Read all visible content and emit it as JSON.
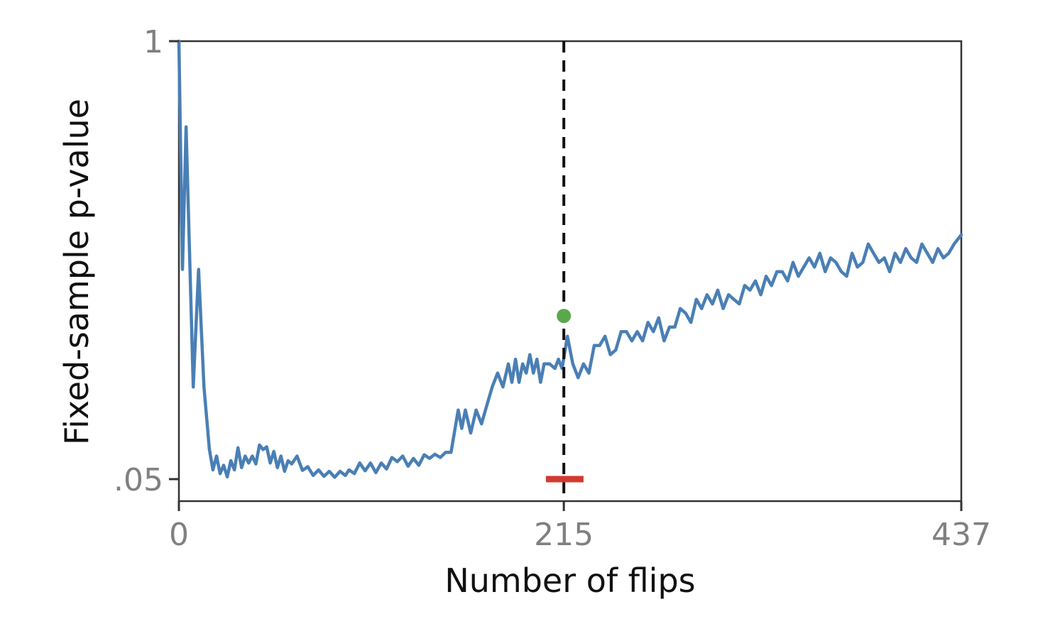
{
  "chart_data": {
    "type": "line",
    "title": "",
    "xlabel": "Number of flips",
    "ylabel": "Fixed-sample p-value",
    "xlim": [
      0,
      437
    ],
    "ylim": [
      0.05,
      1
    ],
    "x_ticks": [
      {
        "value": 0,
        "label": "0"
      },
      {
        "value": 215,
        "label": "215"
      },
      {
        "value": 437,
        "label": "437"
      }
    ],
    "y_ticks": [
      {
        "value": 1,
        "label": "1"
      },
      {
        "value": 0.05,
        "label": ".05"
      }
    ],
    "grid": false,
    "series": [
      {
        "color": "#4a7fb5",
        "points": [
          [
            0,
            1.0
          ],
          [
            2,
            0.505
          ],
          [
            4,
            0.814
          ],
          [
            8,
            0.25
          ],
          [
            11,
            0.505
          ],
          [
            14,
            0.25
          ],
          [
            17,
            0.115
          ],
          [
            19,
            0.07
          ],
          [
            21,
            0.1
          ],
          [
            23,
            0.062
          ],
          [
            25,
            0.08
          ],
          [
            27,
            0.055
          ],
          [
            29,
            0.09
          ],
          [
            31,
            0.07
          ],
          [
            33,
            0.118
          ],
          [
            35,
            0.075
          ],
          [
            37,
            0.1
          ],
          [
            39,
            0.085
          ],
          [
            41,
            0.1
          ],
          [
            43,
            0.083
          ],
          [
            45,
            0.124
          ],
          [
            47,
            0.114
          ],
          [
            49,
            0.12
          ],
          [
            51,
            0.085
          ],
          [
            53,
            0.11
          ],
          [
            55,
            0.075
          ],
          [
            57,
            0.1
          ],
          [
            59,
            0.067
          ],
          [
            61,
            0.09
          ],
          [
            63,
            0.083
          ],
          [
            66,
            0.1
          ],
          [
            69,
            0.069
          ],
          [
            72,
            0.077
          ],
          [
            75,
            0.058
          ],
          [
            78,
            0.07
          ],
          [
            81,
            0.056
          ],
          [
            84,
            0.067
          ],
          [
            87,
            0.054
          ],
          [
            90,
            0.067
          ],
          [
            93,
            0.058
          ],
          [
            95,
            0.07
          ],
          [
            98,
            0.062
          ],
          [
            101,
            0.085
          ],
          [
            104,
            0.068
          ],
          [
            107,
            0.085
          ],
          [
            110,
            0.064
          ],
          [
            113,
            0.085
          ],
          [
            116,
            0.072
          ],
          [
            119,
            0.097
          ],
          [
            122,
            0.088
          ],
          [
            125,
            0.1
          ],
          [
            128,
            0.078
          ],
          [
            131,
            0.095
          ],
          [
            134,
            0.08
          ],
          [
            137,
            0.103
          ],
          [
            140,
            0.095
          ],
          [
            143,
            0.104
          ],
          [
            146,
            0.097
          ],
          [
            149,
            0.108
          ],
          [
            152,
            0.108
          ],
          [
            156,
            0.2
          ],
          [
            158,
            0.16
          ],
          [
            160,
            0.2
          ],
          [
            163,
            0.15
          ],
          [
            166,
            0.2
          ],
          [
            169,
            0.17
          ],
          [
            172,
            0.21
          ],
          [
            175,
            0.25
          ],
          [
            178,
            0.28
          ],
          [
            181,
            0.25
          ],
          [
            184,
            0.3
          ],
          [
            186,
            0.26
          ],
          [
            188,
            0.31
          ],
          [
            190,
            0.26
          ],
          [
            192,
            0.3
          ],
          [
            194,
            0.28
          ],
          [
            196,
            0.32
          ],
          [
            198,
            0.28
          ],
          [
            200,
            0.31
          ],
          [
            202,
            0.26
          ],
          [
            204,
            0.3
          ],
          [
            207,
            0.3
          ],
          [
            210,
            0.29
          ],
          [
            212,
            0.31
          ],
          [
            214,
            0.29
          ],
          [
            217,
            0.36
          ],
          [
            220,
            0.3
          ],
          [
            223,
            0.27
          ],
          [
            226,
            0.3
          ],
          [
            229,
            0.28
          ],
          [
            232,
            0.34
          ],
          [
            235,
            0.34
          ],
          [
            238,
            0.36
          ],
          [
            241,
            0.32
          ],
          [
            244,
            0.33
          ],
          [
            247,
            0.37
          ],
          [
            250,
            0.37
          ],
          [
            253,
            0.35
          ],
          [
            256,
            0.37
          ],
          [
            259,
            0.35
          ],
          [
            262,
            0.39
          ],
          [
            265,
            0.37
          ],
          [
            268,
            0.4
          ],
          [
            271,
            0.35
          ],
          [
            274,
            0.38
          ],
          [
            277,
            0.38
          ],
          [
            280,
            0.42
          ],
          [
            283,
            0.41
          ],
          [
            286,
            0.39
          ],
          [
            289,
            0.44
          ],
          [
            292,
            0.42
          ],
          [
            295,
            0.45
          ],
          [
            298,
            0.43
          ],
          [
            301,
            0.46
          ],
          [
            304,
            0.42
          ],
          [
            307,
            0.45
          ],
          [
            310,
            0.44
          ],
          [
            313,
            0.43
          ],
          [
            316,
            0.47
          ],
          [
            319,
            0.46
          ],
          [
            322,
            0.48
          ],
          [
            325,
            0.45
          ],
          [
            328,
            0.49
          ],
          [
            331,
            0.47
          ],
          [
            334,
            0.5
          ],
          [
            337,
            0.5
          ],
          [
            340,
            0.48
          ],
          [
            343,
            0.52
          ],
          [
            346,
            0.49
          ],
          [
            349,
            0.51
          ],
          [
            352,
            0.53
          ],
          [
            355,
            0.51
          ],
          [
            358,
            0.54
          ],
          [
            361,
            0.5
          ],
          [
            364,
            0.53
          ],
          [
            367,
            0.52
          ],
          [
            370,
            0.5
          ],
          [
            373,
            0.49
          ],
          [
            376,
            0.54
          ],
          [
            379,
            0.51
          ],
          [
            382,
            0.52
          ],
          [
            385,
            0.56
          ],
          [
            388,
            0.54
          ],
          [
            391,
            0.52
          ],
          [
            394,
            0.53
          ],
          [
            397,
            0.5
          ],
          [
            400,
            0.54
          ],
          [
            403,
            0.52
          ],
          [
            406,
            0.55
          ],
          [
            409,
            0.53
          ],
          [
            412,
            0.52
          ],
          [
            415,
            0.56
          ],
          [
            418,
            0.54
          ],
          [
            421,
            0.52
          ],
          [
            424,
            0.55
          ],
          [
            427,
            0.53
          ],
          [
            430,
            0.54
          ],
          [
            433,
            0.56
          ],
          [
            437,
            0.58
          ]
        ]
      }
    ],
    "reference_line": {
      "x": 215,
      "style": "dashed",
      "color": "#111111"
    },
    "marker_point": {
      "x": 215,
      "y": 0.404,
      "color": "#5aa84c"
    },
    "red_segment": {
      "x_start": 205,
      "x_end": 226,
      "y": 0.05,
      "color": "#d23a2f"
    }
  }
}
